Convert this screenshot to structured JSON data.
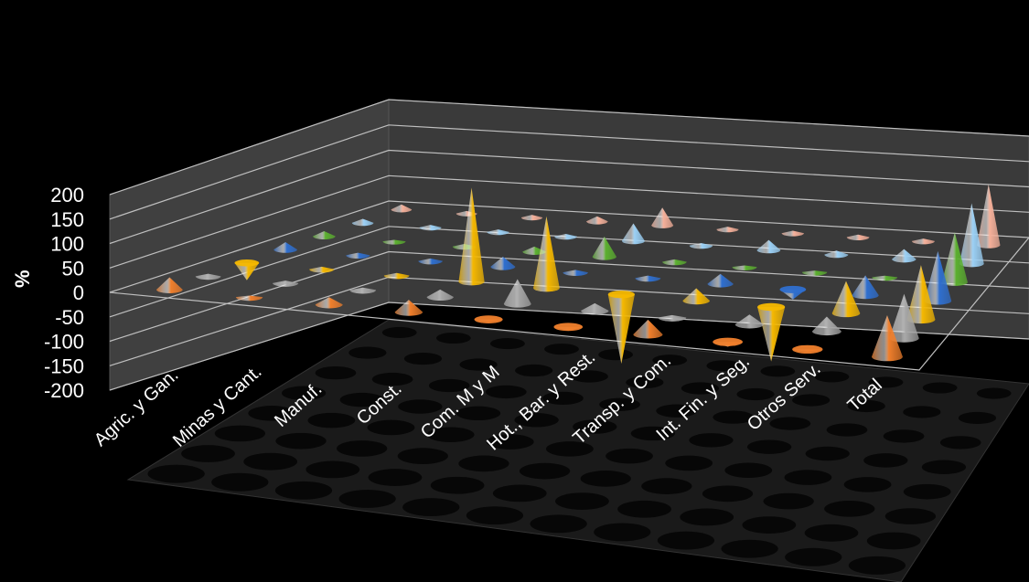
{
  "colors": {
    "background": "#000000",
    "wall": "#404040",
    "floor": "#1a1a1a",
    "grid": "#bfbfbf"
  },
  "chart_data": {
    "type": "bar",
    "shape": "cone-3d",
    "ylabel": "%",
    "ylim": [
      -200,
      200
    ],
    "yticks": [
      "200",
      "150",
      "100",
      "50",
      "0",
      "-50",
      "-100",
      "-150",
      "-200"
    ],
    "gridlines": true,
    "categories": [
      "Agric. y Gan.",
      "Minas y Cant.",
      "Manuf.",
      "Const.",
      "Com. M y M",
      "Hot., Bar. y Rest.",
      "Transp. y Com.",
      "Int. Fin. y Seg.",
      "Otros Serv.",
      "Total"
    ],
    "series": [
      {
        "color": "#f07f2c",
        "values": [
          25,
          3,
          15,
          25,
          -5,
          -8,
          30,
          -10,
          -5,
          85
        ]
      },
      {
        "color": "#a6a6a6",
        "values": [
          5,
          5,
          5,
          15,
          50,
          15,
          5,
          20,
          30,
          90
        ]
      },
      {
        "color": "#f5b800",
        "values": [
          -35,
          5,
          5,
          190,
          145,
          -140,
          25,
          -110,
          65,
          110
        ]
      },
      {
        "color": "#2f6fcf",
        "values": [
          15,
          5,
          5,
          20,
          5,
          5,
          20,
          -20,
          40,
          100
        ]
      },
      {
        "color": "#5cb030",
        "values": [
          10,
          3,
          5,
          10,
          40,
          5,
          3,
          3,
          3,
          100
        ]
      },
      {
        "color": "#9bd0f5",
        "values": [
          8,
          5,
          5,
          5,
          35,
          5,
          20,
          8,
          20,
          120
        ]
      },
      {
        "color": "#f5b09a",
        "values": [
          10,
          5,
          5,
          10,
          35,
          5,
          5,
          5,
          5,
          120
        ]
      }
    ]
  }
}
